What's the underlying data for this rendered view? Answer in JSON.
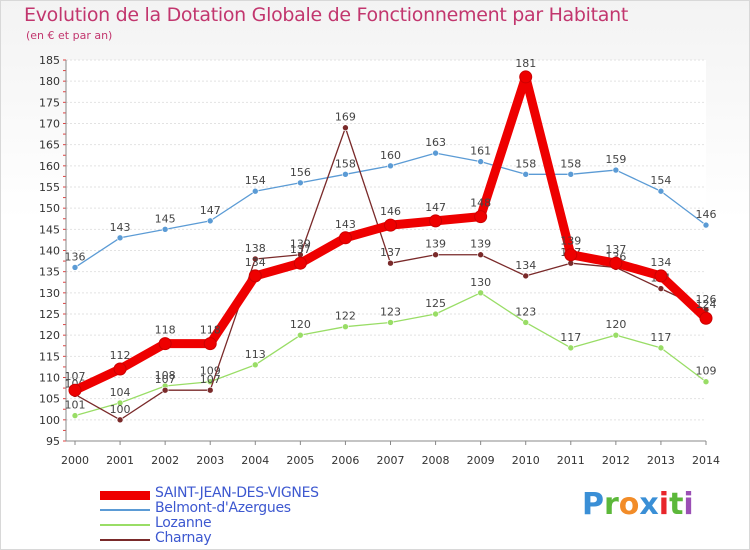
{
  "chart_data": {
    "type": "line",
    "title": "Evolution de la Dotation Globale de Fonctionnement par Habitant",
    "subtitle": "(en € et par an)",
    "x": [
      "2000",
      "2001",
      "2002",
      "2003",
      "2004",
      "2005",
      "2006",
      "2007",
      "2008",
      "2009",
      "2010",
      "2011",
      "2012",
      "2013",
      "2014"
    ],
    "ylim": [
      95,
      185
    ],
    "yticks": [
      95,
      100,
      105,
      110,
      115,
      120,
      125,
      130,
      135,
      140,
      145,
      150,
      155,
      160,
      165,
      170,
      175,
      180,
      185
    ],
    "grid": true,
    "series": [
      {
        "name": "SAINT-JEAN-DES-VIGNES",
        "color": "#ee0000",
        "values": [
          107,
          112,
          118,
          118,
          134,
          137,
          143,
          146,
          147,
          148,
          181,
          139,
          137,
          134,
          124
        ]
      },
      {
        "name": "Belmont-d'Azergues",
        "color": "#5b9bd5",
        "values": [
          136,
          143,
          145,
          147,
          154,
          156,
          158,
          160,
          163,
          161,
          158,
          158,
          159,
          154,
          146
        ]
      },
      {
        "name": "Lozanne",
        "color": "#99dd66",
        "values": [
          101,
          104,
          108,
          109,
          113,
          120,
          122,
          123,
          125,
          130,
          123,
          117,
          120,
          117,
          109
        ]
      },
      {
        "name": "Charnay",
        "color": "#7a2a2a",
        "values": [
          106,
          100,
          107,
          107,
          138,
          139,
          169,
          137,
          139,
          139,
          134,
          137,
          136,
          131,
          126
        ]
      }
    ]
  },
  "logo": {
    "letters": [
      "P",
      "r",
      "o",
      "x",
      "i",
      "t",
      "i"
    ],
    "colors": [
      "#3a8fd6",
      "#5cb83a",
      "#f28c28",
      "#3a8fd6",
      "#e8262b",
      "#5cb83a",
      "#9b4fb5"
    ]
  }
}
